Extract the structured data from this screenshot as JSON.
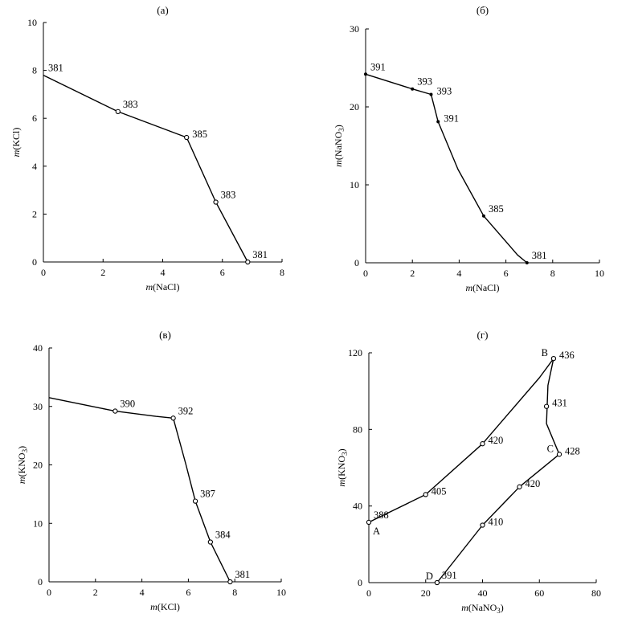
{
  "chart_data": [
    {
      "type": "line",
      "title": "(а)",
      "xlabel": {
        "italic": "m",
        "rest": "(NaCl)"
      },
      "ylabel": {
        "italic": "m",
        "rest": "(KCl)"
      },
      "xlim": [
        0,
        8
      ],
      "ylim": [
        0,
        10
      ],
      "xticks": [
        0,
        2,
        4,
        6,
        8
      ],
      "yticks": [
        0,
        2,
        4,
        6,
        8,
        10
      ],
      "xtick_labels": [
        "0",
        "2",
        "4",
        "6",
        "8"
      ],
      "ytick_labels": [
        "0",
        "2",
        "4",
        "6",
        "8",
        "10"
      ],
      "series": [
        {
          "name": "curve",
          "x": [
            0,
            2.5,
            4.8,
            5.78,
            6.85
          ],
          "y": [
            7.8,
            6.28,
            5.2,
            2.5,
            0
          ]
        }
      ],
      "points": [
        {
          "x": 0,
          "y": 7.8,
          "label": "381",
          "marker": "none",
          "pos": "ne"
        },
        {
          "x": 2.5,
          "y": 6.28,
          "label": "383",
          "marker": "circle",
          "pos": "ne"
        },
        {
          "x": 4.8,
          "y": 5.2,
          "label": "385",
          "marker": "circle",
          "pos": "e"
        },
        {
          "x": 5.78,
          "y": 2.5,
          "label": "383",
          "marker": "circle",
          "pos": "ne"
        },
        {
          "x": 6.85,
          "y": 0,
          "label": "381",
          "marker": "circle",
          "pos": "ne"
        }
      ],
      "letters": []
    },
    {
      "type": "line",
      "title": "(б)",
      "xlabel": {
        "italic": "m",
        "rest": "(NaCl)"
      },
      "ylabel": {
        "italic": "m",
        "rest": "(NaNO",
        "sub": "3",
        "tail": ")"
      },
      "xlim": [
        0,
        10
      ],
      "ylim": [
        0,
        30
      ],
      "xticks": [
        0,
        2,
        4,
        6,
        8,
        10
      ],
      "yticks": [
        0,
        10,
        20,
        30
      ],
      "xtick_labels": [
        "0",
        "2",
        "4",
        "6",
        "8",
        "10"
      ],
      "ytick_labels": [
        "0",
        "10",
        "20",
        "30"
      ],
      "series": [
        {
          "name": "curve",
          "x": [
            0,
            2,
            2.8,
            3.1,
            3.95,
            5.05,
            6.5,
            6.9
          ],
          "y": [
            24.2,
            22.3,
            21.6,
            18.1,
            12.0,
            6.0,
            1.0,
            0
          ]
        }
      ],
      "points": [
        {
          "x": 0,
          "y": 24.2,
          "label": "391",
          "marker": "dot",
          "pos": "ne"
        },
        {
          "x": 2,
          "y": 22.3,
          "label": "393",
          "marker": "dot",
          "pos": "ne"
        },
        {
          "x": 2.8,
          "y": 21.6,
          "label": "393",
          "marker": "dot",
          "pos": "e"
        },
        {
          "x": 3.1,
          "y": 18.1,
          "label": "391",
          "marker": "dot",
          "pos": "e"
        },
        {
          "x": 5.05,
          "y": 6.0,
          "label": "385",
          "marker": "dot",
          "pos": "ne"
        },
        {
          "x": 6.9,
          "y": 0,
          "label": "381",
          "marker": "dot",
          "pos": "ne"
        }
      ],
      "letters": []
    },
    {
      "type": "line",
      "title": "(в)",
      "xlabel": {
        "italic": "m",
        "rest": "(KCl)"
      },
      "ylabel": {
        "italic": "m",
        "rest": "(KNO",
        "sub": "3",
        "tail": ")"
      },
      "xlim": [
        0,
        10
      ],
      "ylim": [
        0,
        40
      ],
      "xticks": [
        0,
        2,
        4,
        6,
        8,
        10
      ],
      "yticks": [
        0,
        10,
        20,
        30,
        40
      ],
      "xtick_labels": [
        "0",
        "2",
        "4",
        "6",
        "8",
        "10"
      ],
      "ytick_labels": [
        "0",
        "10",
        "20",
        "30",
        "40"
      ],
      "series": [
        {
          "name": "curve",
          "x": [
            0,
            2.85,
            4.6,
            5.35,
            5.9,
            6.3,
            6.95,
            7.3,
            7.8
          ],
          "y": [
            31.5,
            29.2,
            28.3,
            28.0,
            20.0,
            13.8,
            6.8,
            4.0,
            0
          ]
        }
      ],
      "points": [
        {
          "x": 2.85,
          "y": 29.2,
          "label": "390",
          "marker": "circle",
          "pos": "ne"
        },
        {
          "x": 5.35,
          "y": 28.0,
          "label": "392",
          "marker": "circle",
          "pos": "ne"
        },
        {
          "x": 6.3,
          "y": 13.8,
          "label": "387",
          "marker": "circle",
          "pos": "ne"
        },
        {
          "x": 6.95,
          "y": 6.8,
          "label": "384",
          "marker": "circle",
          "pos": "ne"
        },
        {
          "x": 7.8,
          "y": 0,
          "label": "381",
          "marker": "circle",
          "pos": "ne"
        }
      ],
      "letters": []
    },
    {
      "type": "line",
      "title": "(г)",
      "xlabel": {
        "italic": "m",
        "rest": "(NaNO",
        "sub": "3",
        "tail": ")"
      },
      "ylabel": {
        "italic": "m",
        "rest": "(KNO",
        "sub": "3",
        "tail": ")"
      },
      "xlim": [
        0,
        80
      ],
      "ylim": [
        0,
        120
      ],
      "xticks": [
        0,
        20,
        40,
        60,
        80
      ],
      "yticks": [
        0,
        40,
        80,
        120
      ],
      "xtick_labels": [
        "0",
        "20",
        "40",
        "60",
        "80"
      ],
      "ytick_labels": [
        "0",
        "40",
        "80",
        "120"
      ],
      "series": [
        {
          "name": "upper",
          "x": [
            0,
            20,
            40,
            60,
            65,
            63,
            62.5,
            67
          ],
          "y": [
            31.5,
            46,
            72.5,
            107,
            117,
            103,
            83,
            67
          ]
        },
        {
          "name": "lower",
          "x": [
            67,
            53,
            40,
            24
          ],
          "y": [
            67,
            50,
            30,
            0
          ]
        }
      ],
      "points": [
        {
          "x": 0,
          "y": 31.5,
          "label": "388",
          "marker": "circle",
          "pos": "ne"
        },
        {
          "x": 20,
          "y": 46,
          "label": "405",
          "marker": "circle",
          "pos": "e"
        },
        {
          "x": 40,
          "y": 72.5,
          "label": "420",
          "marker": "circle",
          "pos": "e"
        },
        {
          "x": 65,
          "y": 117,
          "label": "436",
          "marker": "circle",
          "pos": "e"
        },
        {
          "x": 62.5,
          "y": 92,
          "label": "431",
          "marker": "circle",
          "pos": "e"
        },
        {
          "x": 67,
          "y": 67,
          "label": "428",
          "marker": "circle",
          "pos": "e"
        },
        {
          "x": 53,
          "y": 50,
          "label": "420",
          "marker": "circle",
          "pos": "e"
        },
        {
          "x": 40,
          "y": 30,
          "label": "410",
          "marker": "circle",
          "pos": "e"
        },
        {
          "x": 24,
          "y": 0,
          "label": "391",
          "marker": "circle",
          "pos": "ne"
        }
      ],
      "letters": [
        {
          "x": 0,
          "y": 31.5,
          "text": "A",
          "pos": "se"
        },
        {
          "x": 65,
          "y": 117,
          "text": "B",
          "pos": "w"
        },
        {
          "x": 67,
          "y": 67,
          "text": "C",
          "pos": "w"
        },
        {
          "x": 24,
          "y": 0,
          "text": "D",
          "pos": "nw"
        }
      ]
    }
  ]
}
